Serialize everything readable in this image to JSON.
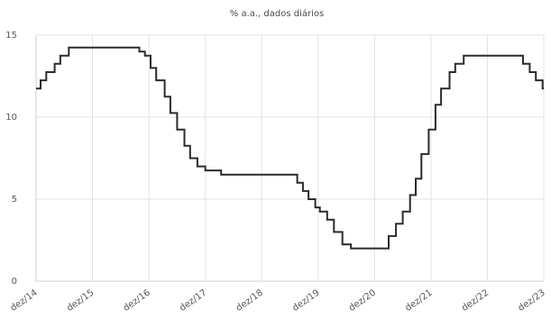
{
  "chart_data": {
    "type": "line",
    "title": "% a.a., dados diários",
    "xlabel": "",
    "ylabel": "",
    "ylim": [
      0,
      15
    ],
    "y_ticks": [
      0,
      5,
      10,
      15
    ],
    "x_tick_labels": [
      "dez/14",
      "dez/15",
      "dez/16",
      "dez/17",
      "dez/18",
      "dez/19",
      "dez/20",
      "dez/21",
      "dez/22",
      "dez/23"
    ],
    "x_range_years": [
      2014.92,
      2023.92
    ],
    "grid": true,
    "step": true,
    "series": [
      {
        "points": [
          [
            2014.92,
            11.75
          ],
          [
            2015.0,
            12.25
          ],
          [
            2015.1,
            12.75
          ],
          [
            2015.25,
            13.25
          ],
          [
            2015.35,
            13.75
          ],
          [
            2015.5,
            14.25
          ],
          [
            2016.75,
            14.0
          ],
          [
            2016.85,
            13.75
          ],
          [
            2016.95,
            13.0
          ],
          [
            2017.05,
            12.25
          ],
          [
            2017.2,
            11.25
          ],
          [
            2017.3,
            10.25
          ],
          [
            2017.42,
            9.25
          ],
          [
            2017.55,
            8.25
          ],
          [
            2017.65,
            7.5
          ],
          [
            2017.78,
            7.0
          ],
          [
            2017.92,
            6.75
          ],
          [
            2018.2,
            6.5
          ],
          [
            2019.55,
            6.0
          ],
          [
            2019.65,
            5.5
          ],
          [
            2019.75,
            5.0
          ],
          [
            2019.87,
            4.5
          ],
          [
            2019.95,
            4.25
          ],
          [
            2020.08,
            3.75
          ],
          [
            2020.2,
            3.0
          ],
          [
            2020.35,
            2.25
          ],
          [
            2020.5,
            2.0
          ],
          [
            2021.17,
            2.75
          ],
          [
            2021.3,
            3.5
          ],
          [
            2021.42,
            4.25
          ],
          [
            2021.55,
            5.25
          ],
          [
            2021.65,
            6.25
          ],
          [
            2021.75,
            7.75
          ],
          [
            2021.88,
            9.25
          ],
          [
            2022.0,
            10.75
          ],
          [
            2022.1,
            11.75
          ],
          [
            2022.25,
            12.75
          ],
          [
            2022.35,
            13.25
          ],
          [
            2022.5,
            13.75
          ],
          [
            2023.55,
            13.25
          ],
          [
            2023.67,
            12.75
          ],
          [
            2023.78,
            12.25
          ],
          [
            2023.9,
            11.75
          ],
          [
            2023.92,
            11.75
          ]
        ]
      }
    ],
    "colors": {
      "line": "#2b2b2b",
      "grid": "#e3e3e3",
      "text": "#555555"
    }
  }
}
